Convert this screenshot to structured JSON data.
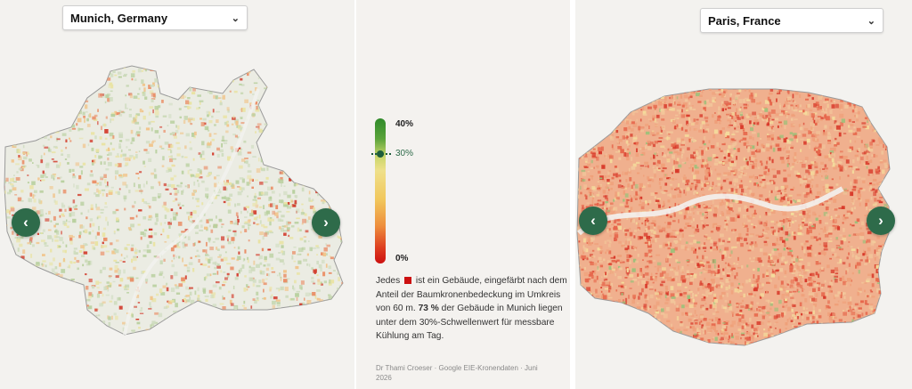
{
  "left_panel": {
    "city_select": {
      "value": "Munich, Germany",
      "icon": "chevron-down-icon"
    },
    "prev_icon": "chevron-left-icon",
    "next_icon": "chevron-right-icon"
  },
  "right_panel": {
    "city_select": {
      "value": "Paris, France",
      "icon": "chevron-down-icon"
    },
    "prev_icon": "chevron-left-icon",
    "next_icon": "chevron-right-icon"
  },
  "legend": {
    "max_label": "40%",
    "threshold_label": "30%",
    "min_label": "0%",
    "colors": {
      "high": "#2f8a2a",
      "mid": "#efe08a",
      "low": "#cc1010"
    }
  },
  "description": {
    "part1": "Jedes",
    "part2": "ist ein Gebäude, eingefärbt nach dem Anteil der Baumkronenbedeckung im Umkreis von 60 m.",
    "highlight": "73 %",
    "part3": "der Gebäude in Munich liegen unter dem 30%-Schwellenwert für messbare Kühlung am Tag."
  },
  "source": "Dr Thami Croeser · Google EIE-Kronendaten · Juni 2026",
  "colors": {
    "accent": "#2e6b4a",
    "background": "#f3f2ef"
  }
}
